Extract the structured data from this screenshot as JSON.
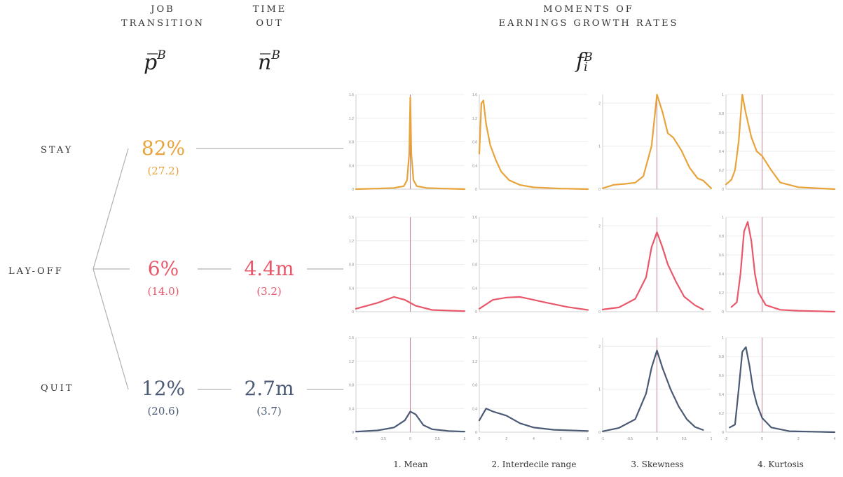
{
  "headers": {
    "job_transition": [
      "JOB",
      "TRANSITION"
    ],
    "time_out": [
      "TIME",
      "OUT"
    ],
    "moments": [
      "MOMENTS OF",
      "EARNINGS GROWTH RATES"
    ]
  },
  "symbols": {
    "p": {
      "base": "p̅",
      "sup": "B"
    },
    "n": {
      "base": "n̅",
      "sup": "B"
    },
    "f": {
      "base": "f",
      "sub": "i",
      "sup": "B"
    }
  },
  "rows": [
    {
      "label": "STAY",
      "pct": "82%",
      "pct_sd": "(27.2)",
      "time": "",
      "time_sd": "",
      "color": "#E8A33A"
    },
    {
      "label": "LAY-OFF",
      "pct": "6%",
      "pct_sd": "(14.0)",
      "time": "4.4m",
      "time_sd": "(3.2)",
      "color": "#E8586A"
    },
    {
      "label": "QUIT",
      "pct": "12%",
      "pct_sd": "(20.6)",
      "time": "2.7m",
      "time_sd": "(3.7)",
      "color": "#4A5A75"
    }
  ],
  "columns": [
    "1. Mean",
    "2. Interdecile range",
    "3. Skewness",
    "4. Kurtosis"
  ],
  "chart_data": {
    "type": "line",
    "panels": [
      {
        "column": "1. Mean",
        "xlim": [
          -5,
          5
        ],
        "xticks": [
          "-5",
          "-2.5",
          "0",
          "2.5",
          "5"
        ],
        "ylim": [
          0,
          1.6
        ],
        "yticks": [
          "0",
          "0.4",
          "0.8",
          "1.2",
          "1.6"
        ],
        "ref_x": 0
      },
      {
        "column": "2. Interdecile range",
        "xlim": [
          0,
          8
        ],
        "xticks": [
          "0",
          "2",
          "4",
          "6",
          "8"
        ],
        "ylim": [
          0,
          1.6
        ],
        "yticks": [
          "0",
          "0.4",
          "0.8",
          "1.2",
          "1.6"
        ],
        "ref_x": null
      },
      {
        "column": "3. Skewness",
        "xlim": [
          -1,
          1
        ],
        "xticks": [
          "-1",
          "-0.5",
          "0",
          "0.5",
          "1"
        ],
        "ylim": [
          0,
          2.2
        ],
        "yticks": [
          "0",
          "1",
          "2"
        ],
        "ref_x": 0
      },
      {
        "column": "4. Kurtosis",
        "xlim": [
          -2,
          4
        ],
        "xticks": [
          "-2",
          "0",
          "2",
          "4"
        ],
        "ylim": [
          0,
          1
        ],
        "yticks": [
          "0",
          "0.2",
          "0.4",
          "0.6",
          "0.8",
          "1"
        ],
        "ref_x": 0
      }
    ],
    "series": [
      {
        "row": "STAY",
        "color": "#E8A33A",
        "curves": [
          [
            [
              -5,
              0.0
            ],
            [
              -3,
              0.01
            ],
            [
              -1.5,
              0.02
            ],
            [
              -0.6,
              0.05
            ],
            [
              -0.3,
              0.15
            ],
            [
              -0.1,
              0.6
            ],
            [
              0,
              1.55
            ],
            [
              0.1,
              0.6
            ],
            [
              0.3,
              0.15
            ],
            [
              0.6,
              0.05
            ],
            [
              1.5,
              0.02
            ],
            [
              3,
              0.01
            ],
            [
              5,
              0.0
            ]
          ],
          [
            [
              0,
              0.6
            ],
            [
              0.15,
              1.45
            ],
            [
              0.3,
              1.5
            ],
            [
              0.5,
              1.1
            ],
            [
              0.8,
              0.75
            ],
            [
              1.2,
              0.5
            ],
            [
              1.6,
              0.3
            ],
            [
              2.2,
              0.15
            ],
            [
              3,
              0.07
            ],
            [
              4,
              0.03
            ],
            [
              6,
              0.01
            ],
            [
              8,
              0.0
            ]
          ],
          [
            [
              -1,
              0.02
            ],
            [
              -0.8,
              0.1
            ],
            [
              -0.6,
              0.12
            ],
            [
              -0.4,
              0.15
            ],
            [
              -0.25,
              0.3
            ],
            [
              -0.1,
              1.0
            ],
            [
              0,
              2.2
            ],
            [
              0.1,
              1.8
            ],
            [
              0.2,
              1.3
            ],
            [
              0.3,
              1.2
            ],
            [
              0.45,
              0.9
            ],
            [
              0.6,
              0.5
            ],
            [
              0.75,
              0.25
            ],
            [
              0.85,
              0.2
            ],
            [
              1,
              0.02
            ]
          ],
          [
            [
              -2,
              0.05
            ],
            [
              -1.7,
              0.1
            ],
            [
              -1.5,
              0.2
            ],
            [
              -1.3,
              0.5
            ],
            [
              -1.1,
              1.0
            ],
            [
              -0.9,
              0.8
            ],
            [
              -0.6,
              0.55
            ],
            [
              -0.3,
              0.4
            ],
            [
              0,
              0.35
            ],
            [
              0.5,
              0.2
            ],
            [
              1,
              0.07
            ],
            [
              2,
              0.02
            ],
            [
              4,
              0.0
            ]
          ]
        ]
      },
      {
        "row": "LAY-OFF",
        "color": "#E8586A",
        "curves": [
          [
            [
              -5,
              0.05
            ],
            [
              -3,
              0.15
            ],
            [
              -1.5,
              0.25
            ],
            [
              -0.5,
              0.2
            ],
            [
              0.5,
              0.1
            ],
            [
              2,
              0.03
            ],
            [
              5,
              0.01
            ]
          ],
          [
            [
              0,
              0.05
            ],
            [
              1,
              0.2
            ],
            [
              2,
              0.24
            ],
            [
              3,
              0.25
            ],
            [
              4,
              0.2
            ],
            [
              5,
              0.15
            ],
            [
              6.5,
              0.08
            ],
            [
              8,
              0.03
            ]
          ],
          [
            [
              -1,
              0.05
            ],
            [
              -0.7,
              0.1
            ],
            [
              -0.4,
              0.3
            ],
            [
              -0.2,
              0.8
            ],
            [
              -0.1,
              1.5
            ],
            [
              0,
              1.85
            ],
            [
              0.1,
              1.5
            ],
            [
              0.2,
              1.1
            ],
            [
              0.35,
              0.7
            ],
            [
              0.5,
              0.35
            ],
            [
              0.7,
              0.15
            ],
            [
              0.85,
              0.05
            ]
          ],
          [
            [
              -1.7,
              0.05
            ],
            [
              -1.4,
              0.1
            ],
            [
              -1.2,
              0.4
            ],
            [
              -1,
              0.85
            ],
            [
              -0.8,
              0.95
            ],
            [
              -0.6,
              0.75
            ],
            [
              -0.4,
              0.4
            ],
            [
              -0.2,
              0.2
            ],
            [
              0.2,
              0.07
            ],
            [
              1,
              0.02
            ],
            [
              2,
              0.01
            ],
            [
              4,
              0.0
            ]
          ]
        ]
      },
      {
        "row": "QUIT",
        "color": "#4A5A75",
        "curves": [
          [
            [
              -5,
              0.01
            ],
            [
              -3,
              0.03
            ],
            [
              -1.5,
              0.08
            ],
            [
              -0.5,
              0.2
            ],
            [
              0,
              0.35
            ],
            [
              0.5,
              0.3
            ],
            [
              1.2,
              0.12
            ],
            [
              2,
              0.05
            ],
            [
              3.5,
              0.02
            ],
            [
              5,
              0.01
            ]
          ],
          [
            [
              0,
              0.2
            ],
            [
              0.5,
              0.4
            ],
            [
              1,
              0.35
            ],
            [
              2,
              0.28
            ],
            [
              3,
              0.15
            ],
            [
              4,
              0.08
            ],
            [
              5.5,
              0.04
            ],
            [
              8,
              0.02
            ]
          ],
          [
            [
              -1,
              0.02
            ],
            [
              -0.7,
              0.1
            ],
            [
              -0.4,
              0.3
            ],
            [
              -0.2,
              0.9
            ],
            [
              -0.1,
              1.5
            ],
            [
              0,
              1.9
            ],
            [
              0.1,
              1.5
            ],
            [
              0.25,
              1.0
            ],
            [
              0.4,
              0.6
            ],
            [
              0.55,
              0.3
            ],
            [
              0.7,
              0.12
            ],
            [
              0.85,
              0.05
            ]
          ],
          [
            [
              -1.8,
              0.05
            ],
            [
              -1.5,
              0.08
            ],
            [
              -1.3,
              0.45
            ],
            [
              -1.1,
              0.85
            ],
            [
              -0.9,
              0.9
            ],
            [
              -0.7,
              0.7
            ],
            [
              -0.5,
              0.45
            ],
            [
              -0.3,
              0.3
            ],
            [
              0,
              0.15
            ],
            [
              0.5,
              0.05
            ],
            [
              1.5,
              0.01
            ],
            [
              4,
              0.0
            ]
          ]
        ]
      }
    ]
  }
}
